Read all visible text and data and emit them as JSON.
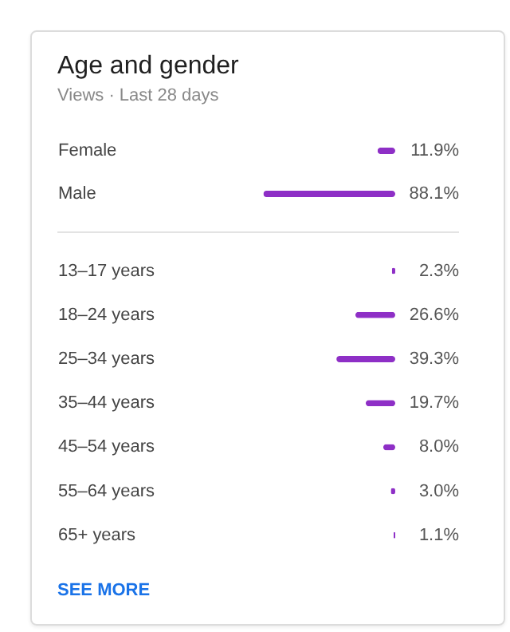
{
  "chart_data": [
    {
      "type": "bar",
      "title": "Age and gender",
      "subtitle": "Views · Last 28 days",
      "orientation": "horizontal",
      "categories": [
        "Female",
        "Male"
      ],
      "values": [
        11.9,
        88.1
      ],
      "value_labels": [
        "11.9%",
        "88.1%"
      ],
      "color": "#8e2fc6"
    },
    {
      "type": "bar",
      "orientation": "horizontal",
      "categories": [
        "13–17 years",
        "18–24 years",
        "25–34 years",
        "35–44 years",
        "45–54 years",
        "55–64 years",
        "65+ years"
      ],
      "values": [
        2.3,
        26.6,
        39.3,
        19.7,
        8.0,
        3.0,
        1.1
      ],
      "value_labels": [
        "2.3%",
        "26.6%",
        "39.3%",
        "19.7%",
        "8.0%",
        "3.0%",
        "1.1%"
      ],
      "color": "#8e2fc6",
      "annotations": [
        "SEE MORE"
      ]
    }
  ]
}
